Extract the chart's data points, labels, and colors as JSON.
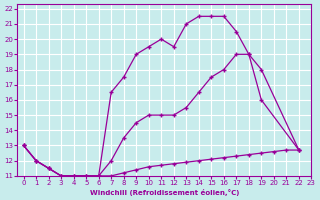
{
  "xlabel": "Windchill (Refroidissement éolien,°C)",
  "bg_color": "#c8ecec",
  "line_color": "#990099",
  "grid_color": "#ffffff",
  "xlim": [
    -0.5,
    23
  ],
  "ylim": [
    11,
    22.3
  ],
  "yticks": [
    11,
    12,
    13,
    14,
    15,
    16,
    17,
    18,
    19,
    20,
    21,
    22
  ],
  "xticks": [
    0,
    1,
    2,
    3,
    4,
    5,
    6,
    7,
    8,
    9,
    10,
    11,
    12,
    13,
    14,
    15,
    16,
    17,
    18,
    19,
    20,
    21,
    22,
    23
  ],
  "line1_x": [
    0,
    1,
    2,
    3,
    4,
    5,
    6,
    7,
    8,
    9,
    10,
    11,
    12,
    13,
    14,
    15,
    16,
    17,
    18,
    19,
    22
  ],
  "line1_y": [
    13.0,
    12.0,
    11.5,
    11.0,
    11.0,
    11.0,
    11.0,
    16.5,
    17.5,
    19.0,
    19.5,
    20.0,
    19.5,
    21.0,
    21.5,
    21.5,
    21.5,
    20.5,
    19.0,
    18.0,
    12.7
  ],
  "line2_x": [
    0,
    1,
    2,
    3,
    4,
    5,
    6,
    7,
    8,
    9,
    10,
    11,
    12,
    13,
    14,
    15,
    16,
    17,
    18,
    19,
    22
  ],
  "line2_y": [
    13.0,
    12.0,
    11.5,
    11.0,
    11.0,
    11.0,
    11.0,
    12.0,
    13.5,
    14.5,
    15.0,
    15.0,
    15.0,
    15.5,
    16.5,
    17.5,
    18.0,
    19.0,
    19.0,
    16.0,
    12.7
  ],
  "line3_x": [
    0,
    1,
    2,
    3,
    4,
    5,
    6,
    7,
    8,
    9,
    10,
    11,
    12,
    13,
    14,
    15,
    16,
    17,
    18,
    19,
    20,
    21,
    22
  ],
  "line3_y": [
    13.0,
    12.0,
    11.5,
    11.0,
    11.0,
    11.0,
    11.0,
    11.0,
    11.2,
    11.4,
    11.6,
    11.7,
    11.8,
    11.9,
    12.0,
    12.1,
    12.2,
    12.3,
    12.4,
    12.5,
    12.6,
    12.7,
    12.7
  ]
}
